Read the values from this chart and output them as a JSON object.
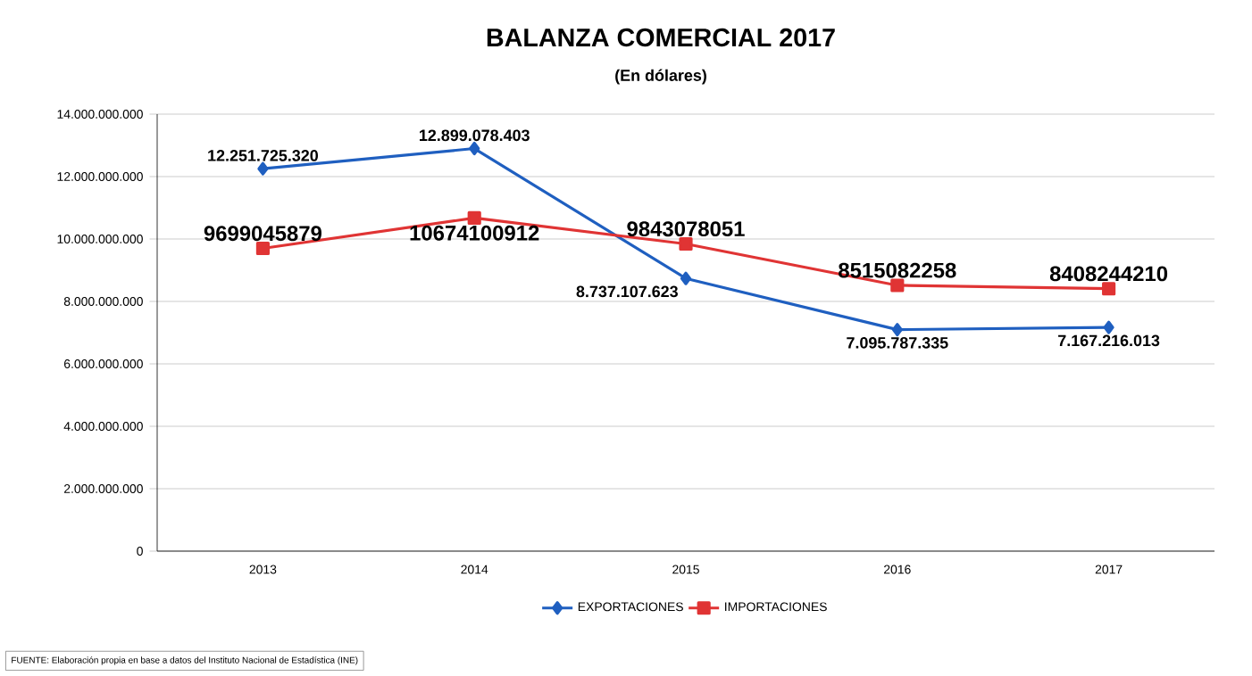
{
  "chart_data": {
    "type": "line",
    "title": "BALANZA COMERCIAL 2017",
    "subtitle": "(En dólares)",
    "categories": [
      "2013",
      "2014",
      "2015",
      "2016",
      "2017"
    ],
    "series": [
      {
        "name": "EXPORTACIONES",
        "color": "#1f5fc0",
        "marker": "diamond",
        "values": [
          12251725320,
          12899078403,
          8737107623,
          7095787335,
          7167216013
        ],
        "value_labels": [
          "12.251.725.320",
          "12.899.078.403",
          "8.737.107.623",
          "7.095.787.335",
          "7.167.216.013"
        ]
      },
      {
        "name": "IMPORTACIONES",
        "color": "#e03434",
        "marker": "square",
        "values": [
          9699045879,
          10674100912,
          9843078051,
          8515082258,
          8408244210
        ],
        "value_labels": [
          "9699045879",
          "10674100912",
          "9843078051",
          "8515082258",
          "8408244210"
        ]
      }
    ],
    "ylim": [
      0,
      14000000000
    ],
    "yticks": [
      {
        "value": 0,
        "label": "0"
      },
      {
        "value": 2000000000,
        "label": "2.000.000.000"
      },
      {
        "value": 4000000000,
        "label": "4.000.000.000"
      },
      {
        "value": 6000000000,
        "label": "6.000.000.000"
      },
      {
        "value": 8000000000,
        "label": "8.000.000.000"
      },
      {
        "value": 10000000000,
        "label": "10.000.000.000"
      },
      {
        "value": 12000000000,
        "label": "12.000.000.000"
      },
      {
        "value": 14000000000,
        "label": "14.000.000.000"
      }
    ],
    "grid": "y",
    "legend": "bottom",
    "line_style": "solid",
    "annotations": [
      "FUENTE: Elaboración propia en base a datos del Instituto Nacional de Estadística (INE)"
    ]
  }
}
